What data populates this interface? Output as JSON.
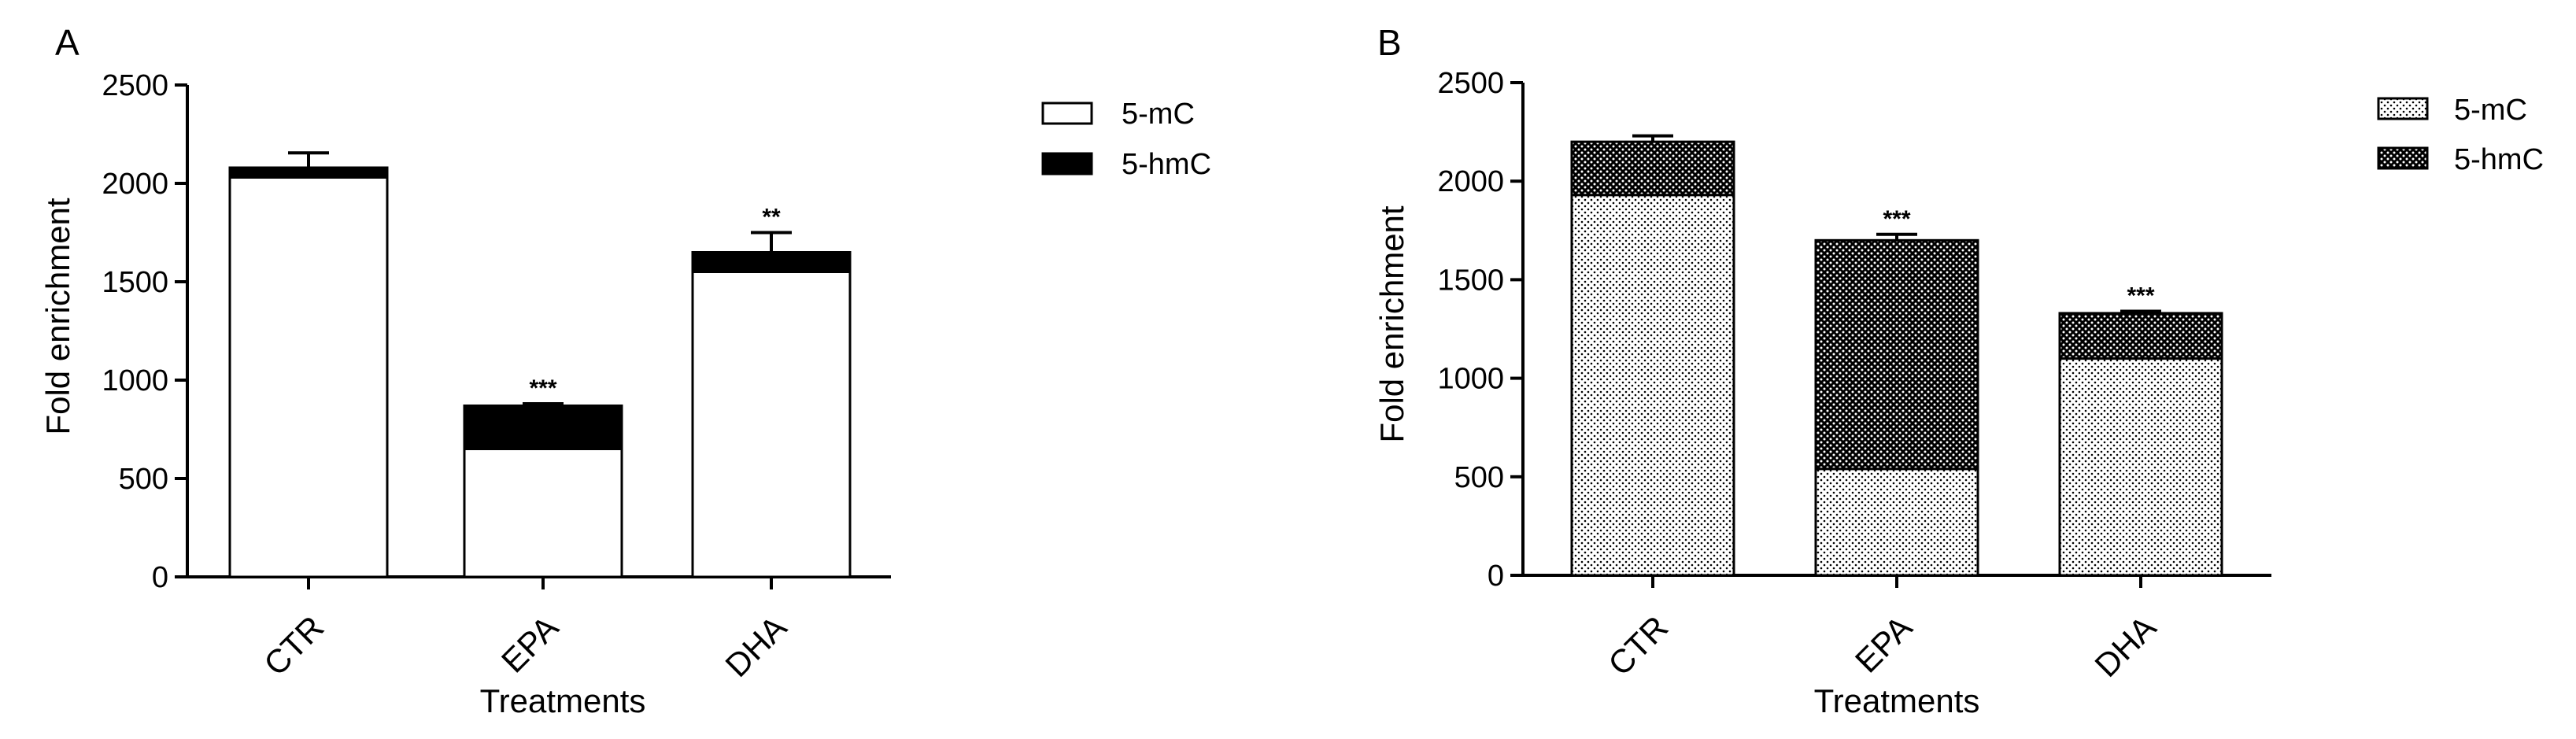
{
  "colors": {
    "ink": "#000000",
    "background": "#ffffff"
  },
  "chart_data": [
    {
      "panel": "A",
      "type": "stacked-bar",
      "xlabel": "Treatments",
      "ylabel": "Fold enrichment",
      "ylim": [
        0,
        2500
      ],
      "yticks": [
        "0",
        "500",
        "1000",
        "1500",
        "2000",
        "2500"
      ],
      "categories": [
        "CTR",
        "EPA",
        "DHA"
      ],
      "series": [
        {
          "name": "5-mC",
          "fill": "white",
          "values": [
            2030,
            650,
            1550
          ]
        },
        {
          "name": "5-hmC",
          "fill": "black",
          "values": [
            50,
            220,
            100
          ]
        }
      ],
      "errors": [
        75,
        10,
        100
      ],
      "significance": [
        "",
        "***",
        "**"
      ],
      "legend_position": "top-right"
    },
    {
      "panel": "B",
      "type": "stacked-bar",
      "xlabel": "Treatments",
      "ylabel": "Fold enrichment",
      "ylim": [
        0,
        2500
      ],
      "yticks": [
        "0",
        "500",
        "1000",
        "1500",
        "2000",
        "2500"
      ],
      "categories": [
        "CTR",
        "EPA",
        "DHA"
      ],
      "series": [
        {
          "name": "5-mC",
          "fill": "light-dots",
          "values": [
            1930,
            540,
            1100
          ]
        },
        {
          "name": "5-hmC",
          "fill": "dark-dots",
          "values": [
            270,
            1160,
            230
          ]
        }
      ],
      "errors": [
        30,
        30,
        10
      ],
      "significance": [
        "",
        "***",
        "***"
      ],
      "legend_position": "top-right"
    }
  ]
}
